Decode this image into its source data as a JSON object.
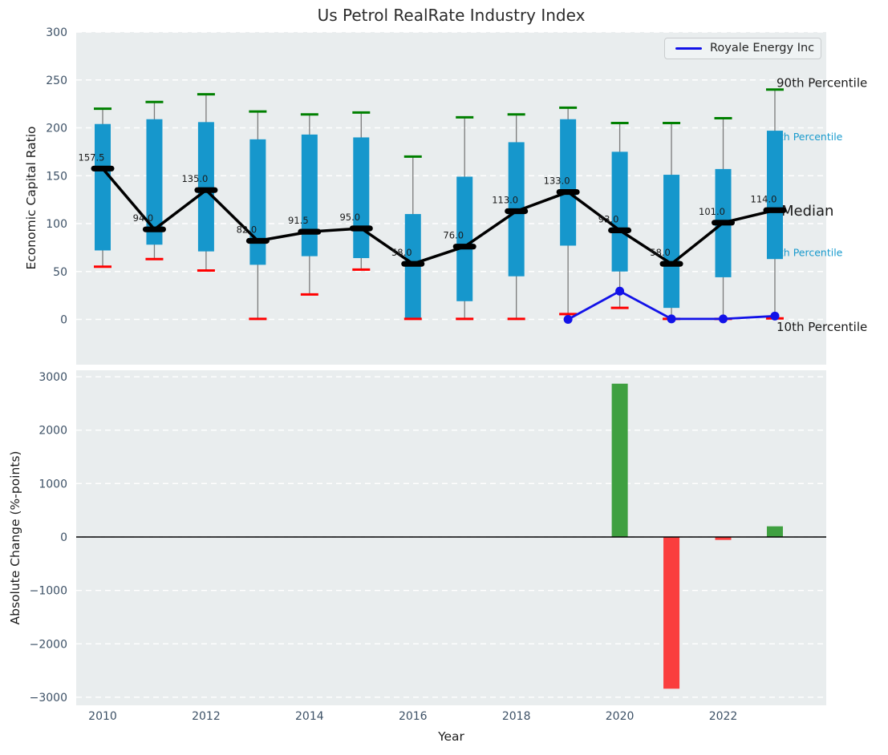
{
  "title": "Us Petrol RealRate Industry Index",
  "colors": {
    "box": "#1697cc",
    "whisker": "#7a7a7a",
    "cap_90": "#008000",
    "cap_10": "#ff0000",
    "median_line": "#000000",
    "royale_line": "#1212e8",
    "bar_positive": "#3fa040",
    "bar_negative": "#fa3e3e",
    "plot_background": "#e9edee",
    "grid": "#ffffff",
    "tick_text": "#3d5166",
    "label_text": "#1a1a1a",
    "annotation_blue": "#189acd",
    "zero_line": "#000000"
  },
  "chart_data": [
    {
      "type": "box-whisker-line",
      "title": "Us Petrol RealRate Industry Index",
      "ylabel": "Economic Capital Ratio",
      "ylim": [
        -47,
        300
      ],
      "yticks": [
        "300",
        "250",
        "200",
        "150",
        "100",
        "50",
        "0"
      ],
      "ytick_values": [
        300,
        250,
        200,
        150,
        100,
        50,
        0
      ],
      "grid": true,
      "years": [
        2010,
        2011,
        2012,
        2013,
        2014,
        2015,
        2016,
        2017,
        2018,
        2019,
        2020,
        2021,
        2022,
        2023
      ],
      "percentile_90": [
        220,
        227,
        235,
        217,
        214,
        216,
        170,
        211,
        214,
        221,
        205,
        205,
        210,
        240
      ],
      "percentile_75": [
        204,
        209,
        206,
        188,
        193,
        190,
        110,
        149,
        185,
        209,
        175,
        151,
        157,
        197
      ],
      "median": [
        157.5,
        94,
        135,
        82,
        91.5,
        95,
        58,
        76,
        113,
        133,
        93,
        58,
        101,
        114
      ],
      "median_labels": [
        "157.5",
        "94.0",
        "135.0",
        "82.0",
        "91.5",
        "95.0",
        "58.0",
        "76.0",
        "113.0",
        "133.0",
        "93.0",
        "58.0",
        "101.0",
        "114.0"
      ],
      "percentile_25": [
        72,
        78,
        71,
        57,
        66,
        64,
        0.5,
        19,
        45,
        77,
        50,
        12,
        44,
        63
      ],
      "percentile_10": [
        55,
        63,
        51,
        0.5,
        26,
        52,
        0.5,
        0.5,
        0.5,
        5.5,
        12,
        0.5,
        0.5,
        1
      ],
      "company_line": {
        "name": "Royale Energy Inc",
        "x": [
          2019,
          2020,
          2021,
          2022,
          2023
        ],
        "values": [
          0,
          29.5,
          0.5,
          0.5,
          3.5
        ]
      },
      "legend": {
        "label": "Royale Energy Inc",
        "position": "upper right"
      },
      "annotations": [
        {
          "label": "90th Percentile",
          "y": 247,
          "style": "black-large",
          "dx": -62
        },
        {
          "label": "75th Percentile",
          "y": 191,
          "style": "blue-small",
          "dx": -74
        },
        {
          "label": "Median",
          "y": 114,
          "style": "black-xlarge",
          "dx": -56
        },
        {
          "label": "25th Percentile",
          "y": 70,
          "style": "blue-small",
          "dx": -74
        },
        {
          "label": "10th Percentile",
          "y": -7.5,
          "style": "black-large",
          "dx": -62
        }
      ]
    },
    {
      "type": "bar",
      "ylabel": "Absolute Change (%-points)",
      "xlabel": "Year",
      "ylim": [
        -3150,
        3120
      ],
      "yticks": [
        "3000",
        "2000",
        "1000",
        "0",
        "−1000",
        "−2000",
        "−3000"
      ],
      "ytick_values": [
        3000,
        2000,
        1000,
        0,
        -1000,
        -2000,
        -3000
      ],
      "xticks": [
        "2010",
        "2012",
        "2014",
        "2016",
        "2018",
        "2020",
        "2022"
      ],
      "xtick_values": [
        2010,
        2012,
        2014,
        2016,
        2018,
        2020,
        2022
      ],
      "x": [
        2020,
        2021,
        2022,
        2023
      ],
      "values": [
        2870,
        -2840,
        -55,
        200
      ],
      "bar_signs": [
        "positive",
        "negative",
        "negative",
        "positive"
      ],
      "grid": true,
      "zero_line": true
    }
  ]
}
